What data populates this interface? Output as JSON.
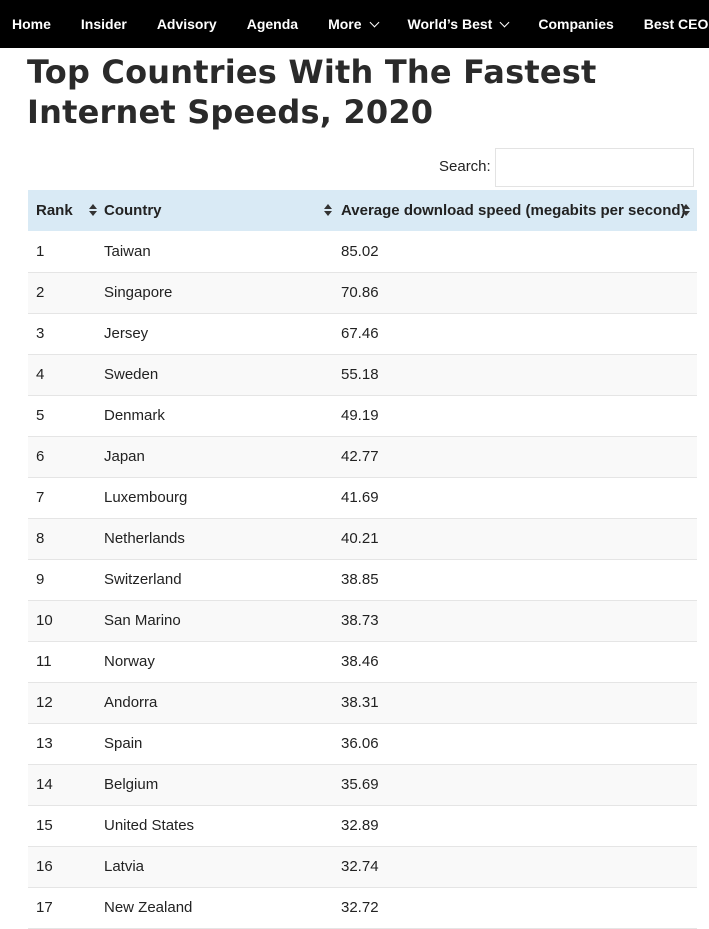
{
  "nav": {
    "items": [
      {
        "label": "Home",
        "dropdown": false
      },
      {
        "label": "Insider",
        "dropdown": false
      },
      {
        "label": "Advisory",
        "dropdown": false
      },
      {
        "label": "Agenda",
        "dropdown": false
      },
      {
        "label": "More",
        "dropdown": true
      },
      {
        "label": "World’s Best",
        "dropdown": true
      },
      {
        "label": "Companies",
        "dropdown": false
      },
      {
        "label": "Best CEOs",
        "dropdown": false
      }
    ]
  },
  "page": {
    "title": "Top Countries With The Fastest Internet Speeds, 2020"
  },
  "search": {
    "label": "Search:",
    "value": "",
    "placeholder": ""
  },
  "table": {
    "headers": [
      "Rank",
      "Country",
      "Average download speed (megabits per second)"
    ],
    "header_bg": "#d9eaf5",
    "rows": [
      {
        "rank": "1",
        "country": "Taiwan",
        "speed": "85.02"
      },
      {
        "rank": "2",
        "country": "Singapore",
        "speed": "70.86"
      },
      {
        "rank": "3",
        "country": "Jersey",
        "speed": "67.46"
      },
      {
        "rank": "4",
        "country": "Sweden",
        "speed": "55.18"
      },
      {
        "rank": "5",
        "country": "Denmark",
        "speed": "49.19"
      },
      {
        "rank": "6",
        "country": "Japan",
        "speed": "42.77"
      },
      {
        "rank": "7",
        "country": "Luxembourg",
        "speed": "41.69"
      },
      {
        "rank": "8",
        "country": "Netherlands",
        "speed": "40.21"
      },
      {
        "rank": "9",
        "country": "Switzerland",
        "speed": "38.85"
      },
      {
        "rank": "10",
        "country": "San Marino",
        "speed": "38.73"
      },
      {
        "rank": "11",
        "country": "Norway",
        "speed": "38.46"
      },
      {
        "rank": "12",
        "country": "Andorra",
        "speed": "38.31"
      },
      {
        "rank": "13",
        "country": "Spain",
        "speed": "36.06"
      },
      {
        "rank": "14",
        "country": "Belgium",
        "speed": "35.69"
      },
      {
        "rank": "15",
        "country": "United States",
        "speed": "32.89"
      },
      {
        "rank": "16",
        "country": "Latvia",
        "speed": "32.74"
      },
      {
        "rank": "17",
        "country": "New Zealand",
        "speed": "32.72"
      }
    ]
  }
}
